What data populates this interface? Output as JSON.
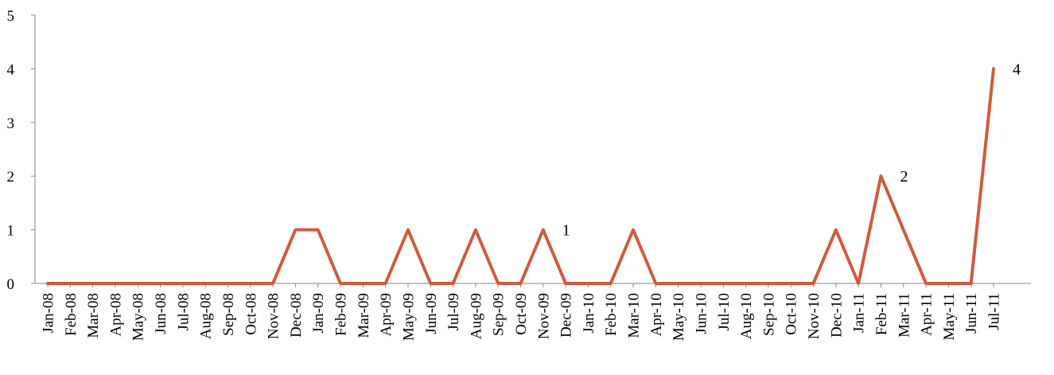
{
  "chart_data": {
    "type": "line",
    "title": "",
    "xlabel": "",
    "ylabel": "",
    "ylim": [
      0,
      5
    ],
    "yticks": [
      0,
      1,
      2,
      3,
      4,
      5
    ],
    "grid": false,
    "legend": "none",
    "categories": [
      "Jan-08",
      "Feb-08",
      "Mar-08",
      "Apr-08",
      "May-08",
      "Jun-08",
      "Jul-08",
      "Aug-08",
      "Sep-08",
      "Oct-08",
      "Nov-08",
      "Dec-08",
      "Jan-09",
      "Feb-09",
      "Mar-09",
      "Apr-09",
      "May-09",
      "Jun-09",
      "Jul-09",
      "Aug-09",
      "Sep-09",
      "Oct-09",
      "Nov-09",
      "Dec-09",
      "Jan-10",
      "Feb-10",
      "Mar-10",
      "Apr-10",
      "May-10",
      "Jun-10",
      "Jul-10",
      "Aug-10",
      "Sep-10",
      "Oct-10",
      "Nov-10",
      "Dec-10",
      "Jan-11",
      "Feb-11",
      "Mar-11",
      "Apr-11",
      "May-11",
      "Jun-11",
      "Jul-11"
    ],
    "series": [
      {
        "color": "#cd5c3c",
        "values": [
          0,
          0,
          0,
          0,
          0,
          0,
          0,
          0,
          0,
          0,
          0,
          1,
          1,
          0,
          0,
          0,
          1,
          0,
          0,
          1,
          0,
          0,
          1,
          0,
          0,
          0,
          1,
          0,
          0,
          0,
          0,
          0,
          0,
          0,
          0,
          1,
          0,
          2,
          1,
          0,
          0,
          0,
          4
        ]
      }
    ],
    "data_labels": [
      {
        "category": "Nov-09",
        "text": "1"
      },
      {
        "category": "Feb-11",
        "text": "2"
      },
      {
        "category": "Jul-11",
        "text": "4"
      }
    ]
  }
}
